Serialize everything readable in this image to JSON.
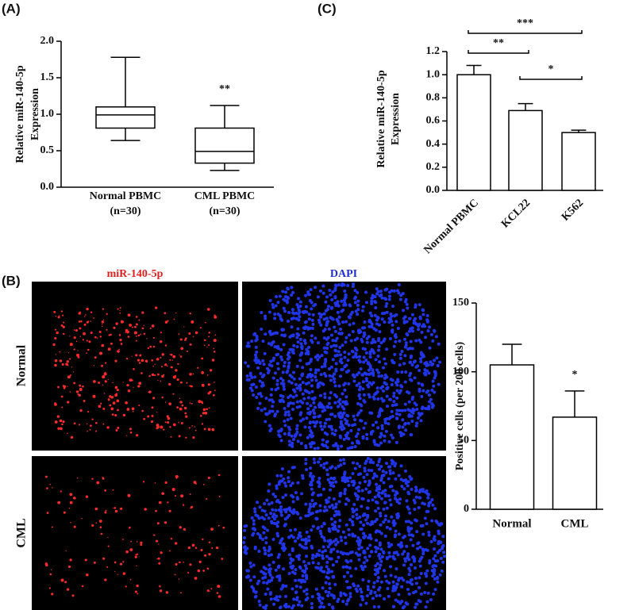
{
  "panel_labels": {
    "a": "(A)",
    "b": "(B)",
    "c": "(C)"
  },
  "images": {
    "column_titles": [
      "miR-140-5p",
      "DAPI"
    ],
    "row_labels": [
      "Normal",
      "CML"
    ]
  },
  "chart_data": [
    {
      "type": "box",
      "y_label": [
        "Relative miR-140-5p",
        "Expression"
      ],
      "categories": [
        [
          "Normal PBMC",
          "(n=30)"
        ],
        [
          "CML PBMC",
          "(n=30)"
        ]
      ],
      "min": [
        0.64,
        0.23
      ],
      "q1": [
        0.81,
        0.33
      ],
      "median": [
        0.99,
        0.49
      ],
      "q3": [
        1.1,
        0.81
      ],
      "max": [
        1.78,
        1.12
      ],
      "significance": [
        null,
        "**"
      ],
      "color": "#000000",
      "ylim": [
        0,
        2.0
      ],
      "yticks": [
        {
          "value": 0,
          "label": "0.0"
        },
        {
          "value": 0.5,
          "label": "0.5"
        },
        {
          "value": 1,
          "label": "1.0"
        },
        {
          "value": 1.5,
          "label": "1.5"
        },
        {
          "value": 2,
          "label": "2.0"
        }
      ]
    },
    {
      "type": "bar",
      "y_label": [
        "Relative miR-140-5p",
        "Expression"
      ],
      "categories": [
        "Normal PBMC",
        "KCL22",
        "K562"
      ],
      "values": [
        1.0,
        0.69,
        0.5
      ],
      "errors": [
        0.08,
        0.06,
        0.02
      ],
      "color": "#ffffff",
      "brackets": [
        {
          "pair": [
            "Normal PBMC",
            "K562"
          ],
          "label": "***"
        },
        {
          "pair": [
            "Normal PBMC",
            "KCL22"
          ],
          "label": "**"
        },
        {
          "pair": [
            "KCL22",
            "K562"
          ],
          "label": "*"
        }
      ],
      "ylim": [
        0,
        1.2
      ],
      "yticks": [
        {
          "value": 0,
          "label": "0.0"
        },
        {
          "value": 0.2,
          "label": "0.2"
        },
        {
          "value": 0.4,
          "label": "0.4"
        },
        {
          "value": 0.6,
          "label": "0.6"
        },
        {
          "value": 0.8,
          "label": "0.8"
        },
        {
          "value": 1,
          "label": "1.0"
        },
        {
          "value": 1.2,
          "label": "1.2"
        }
      ]
    },
    {
      "type": "bar",
      "y_label": [
        "Positive cells (per 200 cells)"
      ],
      "categories": [
        "Normal",
        "CML"
      ],
      "values": [
        105,
        67
      ],
      "errors": [
        15,
        19
      ],
      "significance": [
        null,
        "*"
      ],
      "color": "#ffffff",
      "ylim": [
        0,
        150
      ],
      "yticks": [
        0,
        50,
        100,
        150
      ]
    }
  ]
}
